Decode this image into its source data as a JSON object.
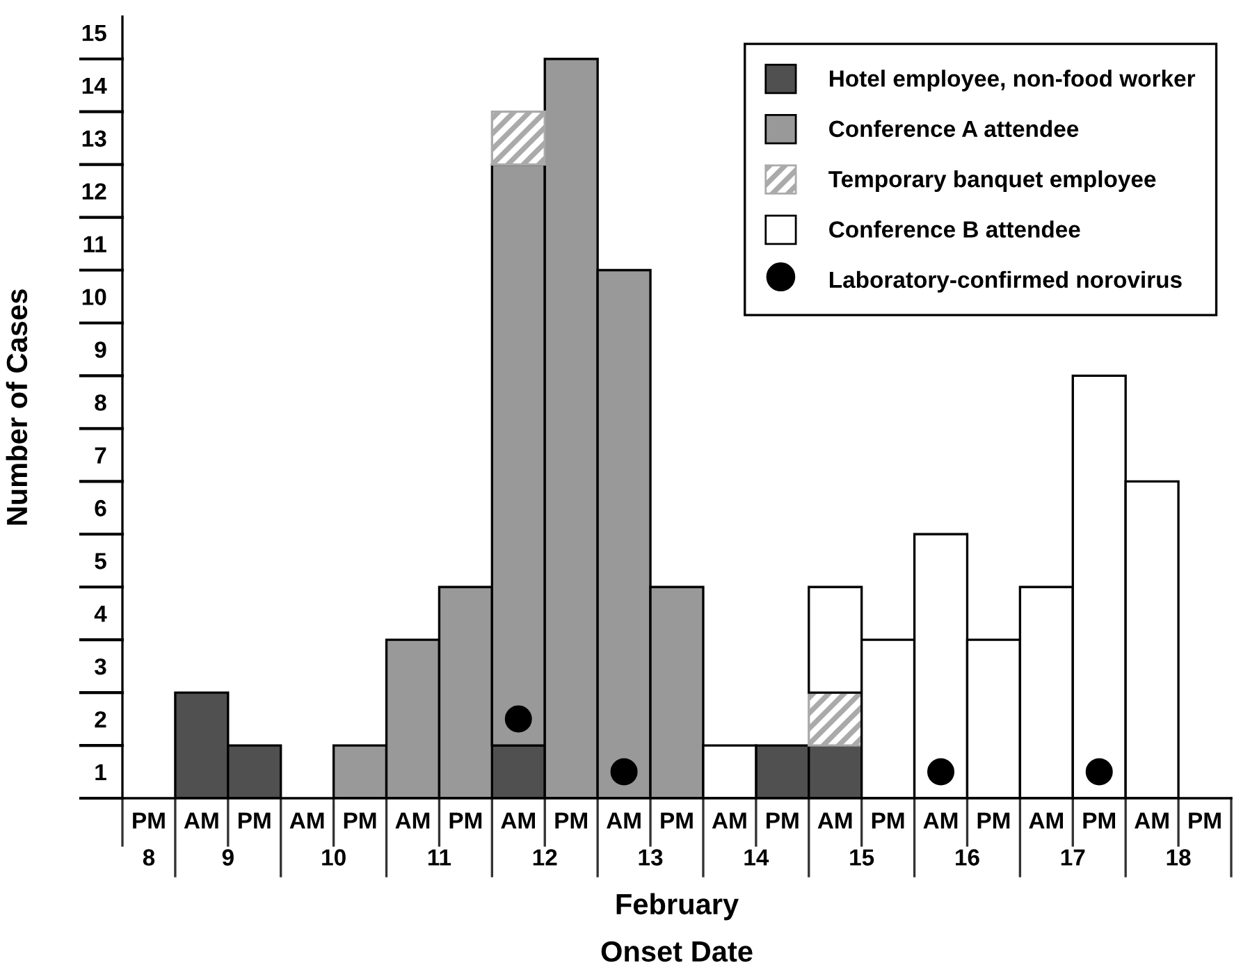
{
  "chart_data": {
    "type": "bar",
    "stacked": true,
    "xlabel": "Onset Date",
    "ylabel": "Number of Cases",
    "categories": [
      "PM",
      "AM",
      "PM",
      "AM",
      "PM",
      "AM",
      "PM",
      "AM",
      "PM",
      "AM",
      "PM",
      "AM",
      "PM",
      "AM",
      "PM",
      "AM",
      "PM",
      "AM",
      "PM",
      "AM",
      "PM"
    ],
    "series": [
      {
        "name": "Hotel employee, non-food worker",
        "color": "#505050",
        "values": [
          0,
          2,
          1,
          0,
          0,
          0,
          0,
          1,
          0,
          0,
          0,
          0,
          1,
          1,
          0,
          0,
          0,
          0,
          0,
          0,
          0
        ]
      },
      {
        "name": "Conference A attendee",
        "color": "#999999",
        "values": [
          0,
          0,
          0,
          0,
          1,
          3,
          4,
          11,
          14,
          10,
          4,
          0,
          0,
          0,
          0,
          0,
          0,
          0,
          0,
          0,
          0
        ]
      },
      {
        "name": "Temporary banquet employee",
        "color": "#aaaaaa",
        "values": [
          0,
          0,
          0,
          0,
          0,
          0,
          0,
          1,
          0,
          0,
          0,
          0,
          0,
          1,
          0,
          0,
          0,
          0,
          0,
          0,
          0
        ]
      },
      {
        "name": "Conference B attendee",
        "color": "#ffffff",
        "values": [
          0,
          0,
          0,
          0,
          0,
          0,
          0,
          0,
          0,
          0,
          0,
          1,
          0,
          2,
          3,
          5,
          3,
          4,
          8,
          6,
          0
        ]
      },
      {
        "name": "Laboratory-confirmed norovirus",
        "type": "scatter",
        "marker": "circle",
        "color": "#000000",
        "values": [
          null,
          null,
          null,
          null,
          null,
          null,
          null,
          1.5,
          null,
          0.5,
          null,
          null,
          null,
          null,
          null,
          0.5,
          null,
          null,
          0.5,
          null,
          null
        ]
      }
    ],
    "ylim": [
      0,
      14.8
    ],
    "yticks": [
      {
        "value": 0.5,
        "label": "1"
      },
      {
        "value": 1.5,
        "label": "2"
      },
      {
        "value": 2.5,
        "label": "3"
      },
      {
        "value": 3.5,
        "label": "4"
      },
      {
        "value": 4.5,
        "label": "5"
      },
      {
        "value": 5.5,
        "label": "6"
      },
      {
        "value": 6.5,
        "label": "7"
      },
      {
        "value": 7.5,
        "label": "8"
      },
      {
        "value": 8.5,
        "label": "9"
      },
      {
        "value": 9.5,
        "label": "10"
      },
      {
        "value": 10.5,
        "label": "11"
      },
      {
        "value": 11.5,
        "label": "12"
      },
      {
        "value": 12.5,
        "label": "13"
      },
      {
        "value": 13.5,
        "label": "14"
      },
      {
        "value": 14.5,
        "label": "15"
      }
    ],
    "annotations": [
      "8",
      "9",
      "10",
      "11",
      "12",
      "13",
      "14",
      "15",
      "16",
      "17",
      "18",
      "February"
    ],
    "legend": "top right",
    "grid": false
  }
}
